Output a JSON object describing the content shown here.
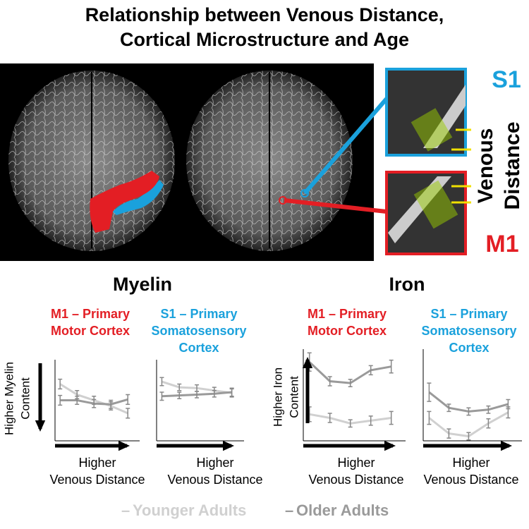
{
  "title": [
    "Relationship between Venous Distance,",
    "Cortical Microstructure and Age"
  ],
  "image_labels": {
    "s1": "S1",
    "m1": "M1",
    "venous_distance": [
      "Venous",
      "Distance"
    ]
  },
  "sections": [
    "Myelin",
    "Iron"
  ],
  "chart_data": [
    {
      "type": "line",
      "title": [
        "M1 – Primary",
        "Motor Cortex"
      ],
      "title_color": "#e31e24",
      "y_label": [
        "Higher Myelin",
        "Content"
      ],
      "x_label": [
        "Higher",
        "Venous Distance"
      ],
      "categories": [
        null,
        null,
        null,
        null,
        null
      ],
      "ylim": [
        0,
        100
      ],
      "series": [
        {
          "name": "Younger Adults",
          "color": "#d0d0d0",
          "values": [
            70,
            57,
            50,
            43,
            34
          ],
          "errors": [
            6,
            5,
            5,
            5,
            6
          ]
        },
        {
          "name": "Older Adults",
          "color": "#9a9a9a",
          "values": [
            50,
            50,
            46,
            45,
            51
          ],
          "errors": [
            6,
            5,
            5,
            5,
            6
          ]
        }
      ]
    },
    {
      "type": "line",
      "title": [
        "S1 – Primary",
        "Somatosensory",
        "Cortex"
      ],
      "title_color": "#1aa1dc",
      "x_label": [
        "Higher",
        "Venous Distance"
      ],
      "categories": [
        null,
        null,
        null,
        null,
        null
      ],
      "ylim": [
        0,
        100
      ],
      "series": [
        {
          "name": "Younger Adults",
          "color": "#d0d0d0",
          "values": [
            73,
            66,
            65,
            62,
            59
          ],
          "errors": [
            5,
            4,
            4,
            4,
            5
          ]
        },
        {
          "name": "Older Adults",
          "color": "#9a9a9a",
          "values": [
            55,
            56,
            57,
            58,
            60
          ],
          "errors": [
            5,
            4,
            4,
            4,
            5
          ]
        }
      ]
    },
    {
      "type": "line",
      "title": [
        "M1 – Primary",
        "Motor Cortex"
      ],
      "title_color": "#e31e24",
      "y_label": [
        "Higher Iron",
        "Content"
      ],
      "x_label": [
        "Higher",
        "Venous Distance"
      ],
      "categories": [
        null,
        null,
        null,
        null,
        null
      ],
      "ylim": [
        0,
        100
      ],
      "series": [
        {
          "name": "Younger Adults",
          "color": "#d0d0d0",
          "values": [
            29,
            25,
            19,
            22,
            25
          ],
          "errors": [
            8,
            5,
            4,
            5,
            7
          ]
        },
        {
          "name": "Older Adults",
          "color": "#9a9a9a",
          "values": [
            86,
            65,
            63,
            77,
            81
          ],
          "errors": [
            10,
            5,
            4,
            5,
            7
          ]
        }
      ]
    },
    {
      "type": "line",
      "title": [
        "S1 – Primary",
        "Somatosensory",
        "Cortex"
      ],
      "title_color": "#1aa1dc",
      "x_label": [
        "Higher",
        "Venous Distance"
      ],
      "categories": [
        null,
        null,
        null,
        null,
        null
      ],
      "ylim": [
        0,
        100
      ],
      "series": [
        {
          "name": "Younger Adults",
          "color": "#d0d0d0",
          "values": [
            25,
            8,
            5,
            19,
            31
          ],
          "errors": [
            7,
            5,
            4,
            5,
            6
          ]
        },
        {
          "name": "Older Adults",
          "color": "#9a9a9a",
          "values": [
            53,
            36,
            32,
            34,
            40
          ],
          "errors": [
            10,
            4,
            4,
            4,
            5
          ]
        }
      ]
    }
  ]
}
